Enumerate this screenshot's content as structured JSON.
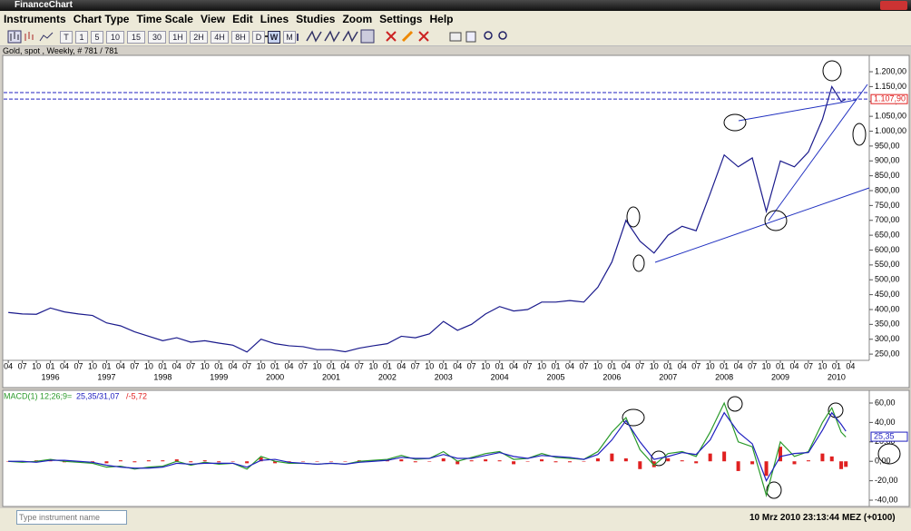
{
  "window": {
    "title": "FinanceChart"
  },
  "menu": [
    "Instruments",
    "Chart Type",
    "Time Scale",
    "View",
    "Edit",
    "Lines",
    "Studies",
    "Zoom",
    "Settings",
    "Help"
  ],
  "toolbar": {
    "timeframes": [
      "T",
      "1",
      "5",
      "10",
      "15",
      "30",
      "1H",
      "2H",
      "4H",
      "8H",
      "D",
      "W",
      "M"
    ],
    "selected_timeframe": "W"
  },
  "chart_data": [
    {
      "type": "line",
      "title": "Gold, spot , Weekly, # 781 / 781",
      "color": "#1a1a8c",
      "x": [
        "1995-04",
        "1995-07",
        "1995-10",
        "1996-01",
        "1996-04",
        "1996-07",
        "1996-10",
        "1997-01",
        "1997-04",
        "1997-07",
        "1997-10",
        "1998-01",
        "1998-04",
        "1998-07",
        "1998-10",
        "1999-01",
        "1999-04",
        "1999-07",
        "1999-10",
        "2000-01",
        "2000-04",
        "2000-07",
        "2000-10",
        "2001-01",
        "2001-04",
        "2001-07",
        "2001-10",
        "2002-01",
        "2002-04",
        "2002-07",
        "2002-10",
        "2003-01",
        "2003-04",
        "2003-07",
        "2003-10",
        "2004-01",
        "2004-04",
        "2004-07",
        "2004-10",
        "2005-01",
        "2005-04",
        "2005-07",
        "2005-10",
        "2006-01",
        "2006-04",
        "2006-07",
        "2006-10",
        "2007-01",
        "2007-04",
        "2007-07",
        "2007-10",
        "2008-01",
        "2008-04",
        "2008-07",
        "2008-10",
        "2009-01",
        "2009-04",
        "2009-07",
        "2009-10",
        "2009-12",
        "2010-02",
        "2010-03"
      ],
      "values": [
        390,
        385,
        384,
        405,
        392,
        385,
        380,
        355,
        345,
        325,
        310,
        295,
        305,
        290,
        295,
        287,
        280,
        257,
        300,
        285,
        278,
        275,
        265,
        265,
        258,
        270,
        278,
        285,
        310,
        305,
        318,
        360,
        330,
        350,
        385,
        410,
        395,
        400,
        425,
        425,
        430,
        425,
        475,
        560,
        700,
        630,
        590,
        650,
        680,
        665,
        790,
        920,
        880,
        910,
        730,
        900,
        880,
        930,
        1040,
        1150,
        1100,
        1107.9
      ],
      "xlim": [
        "1995-03",
        "2010-08"
      ],
      "ylim": [
        232,
        1252
      ],
      "yticks": [
        {
          "value": 250,
          "label": "250,00"
        },
        {
          "value": 300,
          "label": "300,00"
        },
        {
          "value": 350,
          "label": "350,00"
        },
        {
          "value": 400,
          "label": "400,00"
        },
        {
          "value": 450,
          "label": "450,00"
        },
        {
          "value": 500,
          "label": "500,00"
        },
        {
          "value": 550,
          "label": "550,00"
        },
        {
          "value": 600,
          "label": "600,00"
        },
        {
          "value": 650,
          "label": "650,00"
        },
        {
          "value": 700,
          "label": "700,00"
        },
        {
          "value": 750,
          "label": "750,00"
        },
        {
          "value": 800,
          "label": "800,00"
        },
        {
          "value": 850,
          "label": "850,00"
        },
        {
          "value": 900,
          "label": "900,00"
        },
        {
          "value": 950,
          "label": "950,00"
        },
        {
          "value": 1000,
          "label": "1.000,00"
        },
        {
          "value": 1050,
          "label": "1.050,00"
        },
        {
          "value": 1100,
          "label": "1.100,00"
        },
        {
          "value": 1150,
          "label": "1.150,00"
        },
        {
          "value": 1200,
          "label": "1.200,00"
        }
      ],
      "xticks": [
        {
          "value": "1995-04",
          "label": "04"
        },
        {
          "value": "1995-07",
          "label": "07"
        },
        {
          "value": "1995-10",
          "label": "10"
        },
        {
          "value": "1996-01",
          "label": "01"
        },
        {
          "value": "1996-04",
          "label": "04"
        },
        {
          "value": "1996-07",
          "label": "07"
        },
        {
          "value": "1996-10",
          "label": "10"
        },
        {
          "value": "1997-01",
          "label": "01"
        },
        {
          "value": "1997-04",
          "label": "04"
        },
        {
          "value": "1997-07",
          "label": "07"
        },
        {
          "value": "1997-10",
          "label": "10"
        },
        {
          "value": "1998-01",
          "label": "01"
        },
        {
          "value": "1998-04",
          "label": "04"
        },
        {
          "value": "1998-07",
          "label": "07"
        },
        {
          "value": "1998-10",
          "label": "10"
        },
        {
          "value": "1999-01",
          "label": "01"
        },
        {
          "value": "1999-04",
          "label": "04"
        },
        {
          "value": "1999-07",
          "label": "07"
        },
        {
          "value": "1999-10",
          "label": "10"
        },
        {
          "value": "2000-01",
          "label": "01"
        },
        {
          "value": "2000-04",
          "label": "04"
        },
        {
          "value": "2000-07",
          "label": "07"
        },
        {
          "value": "2000-10",
          "label": "10"
        },
        {
          "value": "2001-01",
          "label": "01"
        },
        {
          "value": "2001-04",
          "label": "04"
        },
        {
          "value": "2001-07",
          "label": "07"
        },
        {
          "value": "2001-10",
          "label": "10"
        },
        {
          "value": "2002-01",
          "label": "01"
        },
        {
          "value": "2002-04",
          "label": "04"
        },
        {
          "value": "2002-07",
          "label": "07"
        },
        {
          "value": "2002-10",
          "label": "10"
        },
        {
          "value": "2003-01",
          "label": "01"
        },
        {
          "value": "2003-04",
          "label": "04"
        },
        {
          "value": "2003-07",
          "label": "07"
        },
        {
          "value": "2003-10",
          "label": "10"
        },
        {
          "value": "2004-01",
          "label": "01"
        },
        {
          "value": "2004-04",
          "label": "04"
        },
        {
          "value": "2004-07",
          "label": "07"
        },
        {
          "value": "2004-10",
          "label": "10"
        },
        {
          "value": "2005-01",
          "label": "01"
        },
        {
          "value": "2005-04",
          "label": "04"
        },
        {
          "value": "2005-07",
          "label": "07"
        },
        {
          "value": "2005-10",
          "label": "10"
        },
        {
          "value": "2006-01",
          "label": "01"
        },
        {
          "value": "2006-04",
          "label": "04"
        },
        {
          "value": "2006-07",
          "label": "07"
        },
        {
          "value": "2006-10",
          "label": "10"
        },
        {
          "value": "2007-01",
          "label": "01"
        },
        {
          "value": "2007-04",
          "label": "04"
        },
        {
          "value": "2007-07",
          "label": "07"
        },
        {
          "value": "2007-10",
          "label": "10"
        },
        {
          "value": "2008-01",
          "label": "01"
        },
        {
          "value": "2008-04",
          "label": "04"
        },
        {
          "value": "2008-07",
          "label": "07"
        },
        {
          "value": "2008-10",
          "label": "10"
        },
        {
          "value": "2009-01",
          "label": "01"
        },
        {
          "value": "2009-04",
          "label": "04"
        },
        {
          "value": "2009-07",
          "label": "07"
        },
        {
          "value": "2009-10",
          "label": "10"
        },
        {
          "value": "2010-01",
          "label": "01"
        },
        {
          "value": "2010-04",
          "label": "04"
        }
      ],
      "year_ticks": [
        {
          "value": "1996-01",
          "label": "1996"
        },
        {
          "value": "1997-01",
          "label": "1997"
        },
        {
          "value": "1998-01",
          "label": "1998"
        },
        {
          "value": "1999-01",
          "label": "1999"
        },
        {
          "value": "2000-01",
          "label": "2000"
        },
        {
          "value": "2001-01",
          "label": "2001"
        },
        {
          "value": "2002-01",
          "label": "2002"
        },
        {
          "value": "2003-01",
          "label": "2003"
        },
        {
          "value": "2004-01",
          "label": "2004"
        },
        {
          "value": "2005-01",
          "label": "2005"
        },
        {
          "value": "2006-01",
          "label": "2006"
        },
        {
          "value": "2007-01",
          "label": "2007"
        },
        {
          "value": "2008-01",
          "label": "2008"
        },
        {
          "value": "2009-01",
          "label": "2009"
        },
        {
          "value": "2010-01",
          "label": "2010"
        }
      ],
      "price_marker": {
        "value": 1107.9,
        "label": "1.107,90",
        "color": "#e02020"
      }
    },
    {
      "type": "macd",
      "title_parts": [
        {
          "text": "MACD(1) 12;26;9=",
          "color": "#2a9a2a"
        },
        {
          "text": "25,35/31,07",
          "color": "#2020c0"
        },
        {
          "text": "/-5,72",
          "color": "#e02020"
        }
      ],
      "x": [
        "1995-04",
        "1995-07",
        "1995-10",
        "1996-01",
        "1996-04",
        "1996-07",
        "1996-10",
        "1997-01",
        "1997-04",
        "1997-07",
        "1997-10",
        "1998-01",
        "1998-04",
        "1998-07",
        "1998-10",
        "1999-01",
        "1999-04",
        "1999-07",
        "1999-10",
        "2000-01",
        "2000-04",
        "2000-07",
        "2000-10",
        "2001-01",
        "2001-04",
        "2001-07",
        "2001-10",
        "2002-01",
        "2002-04",
        "2002-07",
        "2002-10",
        "2003-01",
        "2003-04",
        "2003-07",
        "2003-10",
        "2004-01",
        "2004-04",
        "2004-07",
        "2004-10",
        "2005-01",
        "2005-04",
        "2005-07",
        "2005-10",
        "2006-01",
        "2006-04",
        "2006-07",
        "2006-10",
        "2007-01",
        "2007-04",
        "2007-07",
        "2007-10",
        "2008-01",
        "2008-04",
        "2008-07",
        "2008-10",
        "2009-01",
        "2009-04",
        "2009-07",
        "2009-10",
        "2009-12",
        "2010-02",
        "2010-03"
      ],
      "macd": {
        "color": "#2a9a2a",
        "values": [
          0,
          -1,
          0,
          2,
          0,
          -1,
          -2,
          -6,
          -5,
          -8,
          -6,
          -5,
          0,
          -4,
          -1,
          -3,
          -2,
          -8,
          5,
          0,
          -2,
          -2,
          -3,
          -2,
          -3,
          0,
          1,
          2,
          6,
          2,
          3,
          10,
          0,
          4,
          8,
          10,
          2,
          3,
          8,
          4,
          3,
          2,
          10,
          30,
          45,
          12,
          -4,
          8,
          10,
          5,
          30,
          60,
          20,
          15,
          -35,
          20,
          5,
          10,
          40,
          55,
          30,
          25
        ]
      },
      "signal": {
        "color": "#2020c0",
        "values": [
          0,
          0,
          -1,
          1,
          1,
          0,
          -1,
          -4,
          -6,
          -7,
          -7,
          -6,
          -2,
          -3,
          -2,
          -2,
          -2,
          -6,
          1,
          2,
          -1,
          -2,
          -3,
          -2,
          -3,
          -1,
          0,
          1,
          4,
          3,
          3,
          7,
          3,
          3,
          6,
          9,
          5,
          3,
          6,
          5,
          4,
          2,
          7,
          22,
          42,
          20,
          2,
          5,
          9,
          7,
          22,
          50,
          30,
          18,
          -20,
          5,
          8,
          9,
          32,
          50,
          38,
          31
        ]
      },
      "histogram": {
        "color": "#e02020",
        "values": [
          0,
          -1,
          1,
          1,
          -1,
          -1,
          -1,
          -2,
          1,
          -1,
          1,
          1,
          2,
          -1,
          1,
          -1,
          0,
          -2,
          4,
          -2,
          -1,
          0,
          0,
          0,
          0,
          1,
          1,
          1,
          2,
          -1,
          0,
          3,
          -3,
          1,
          2,
          1,
          -3,
          0,
          2,
          -1,
          -1,
          0,
          3,
          8,
          3,
          -8,
          -6,
          3,
          1,
          -2,
          8,
          10,
          -10,
          -3,
          -15,
          15,
          -3,
          1,
          8,
          5,
          -8,
          -5.72
        ]
      },
      "xlim": [
        "1995-03",
        "2010-08"
      ],
      "ylim": [
        -43.7,
        71.2
      ],
      "yticks": [
        {
          "value": -40,
          "label": "-40,00"
        },
        {
          "value": -20,
          "label": "-20,00"
        },
        {
          "value": 0,
          "label": "0,00"
        },
        {
          "value": 20,
          "label": "20,00"
        },
        {
          "value": 40,
          "label": "40,00"
        },
        {
          "value": 60,
          "label": "60,00"
        }
      ],
      "current_marker": {
        "value": 25.35,
        "label": "25,35",
        "color": "#2020c0"
      }
    }
  ],
  "status": {
    "search_placeholder": "Type instrument name",
    "datetime": "10 Mrz 2010 23:13:44",
    "timezone": "MEZ (+0100)"
  }
}
